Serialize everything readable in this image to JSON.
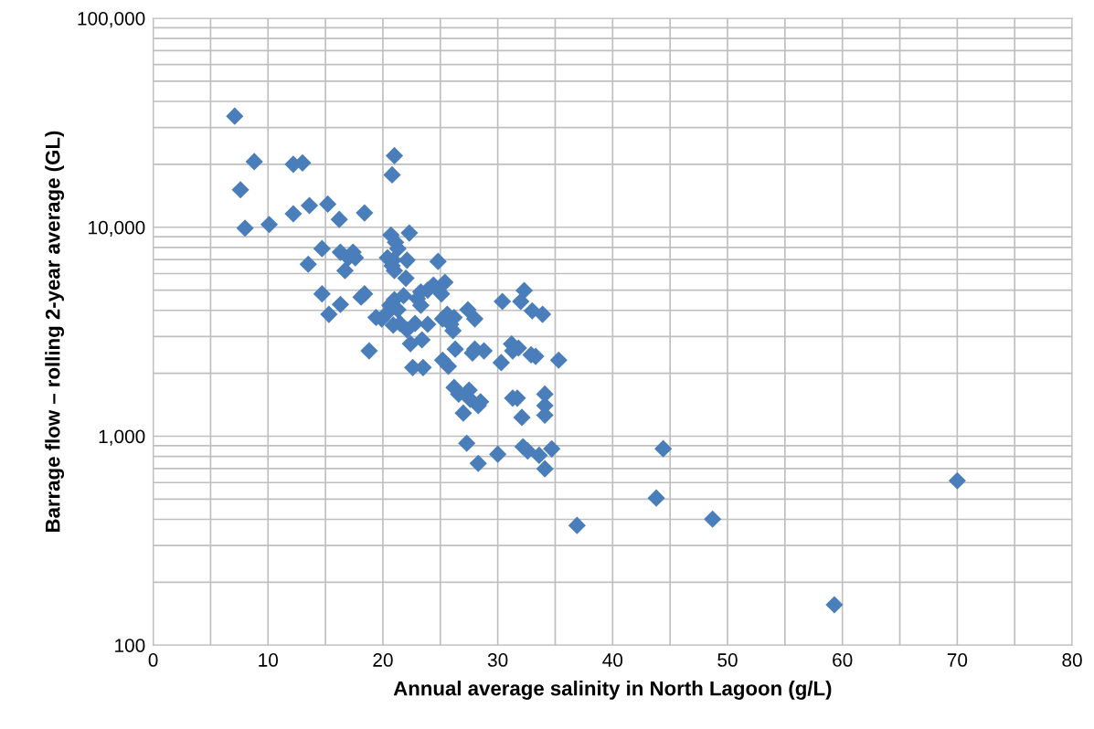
{
  "chart_data": {
    "type": "scatter",
    "xlabel": "Annual average salinity in North Lagoon (g/L)",
    "ylabel": "Barrage flow – rolling 2-year average (GL)",
    "log": "y",
    "grid": true,
    "marker": "diamond",
    "xlim": [
      0,
      80
    ],
    "xticks": [
      0,
      {
        "value": 5,
        "label": null
      },
      10,
      {
        "value": 15,
        "label": null
      },
      20,
      {
        "value": 25,
        "label": null
      },
      30,
      {
        "value": 35,
        "label": null
      },
      40,
      {
        "value": 45,
        "label": null
      },
      50,
      {
        "value": 55,
        "label": null
      },
      60,
      {
        "value": 65,
        "label": null
      },
      70,
      {
        "value": 75,
        "label": null
      },
      80
    ],
    "ylim": [
      100,
      100000
    ],
    "yticks": [
      {
        "value": 100,
        "label": "100"
      },
      {
        "value": 200,
        "label": null
      },
      {
        "value": 300,
        "label": null
      },
      {
        "value": 400,
        "label": null
      },
      {
        "value": 500,
        "label": null
      },
      {
        "value": 600,
        "label": null
      },
      {
        "value": 700,
        "label": null
      },
      {
        "value": 800,
        "label": null
      },
      {
        "value": 900,
        "label": null
      },
      {
        "value": 1000,
        "label": "1,000"
      },
      {
        "value": 2000,
        "label": null
      },
      {
        "value": 3000,
        "label": null
      },
      {
        "value": 4000,
        "label": null
      },
      {
        "value": 5000,
        "label": null
      },
      {
        "value": 6000,
        "label": null
      },
      {
        "value": 7000,
        "label": null
      },
      {
        "value": 8000,
        "label": null
      },
      {
        "value": 9000,
        "label": null
      },
      {
        "value": 10000,
        "label": "10,000"
      },
      {
        "value": 20000,
        "label": null
      },
      {
        "value": 30000,
        "label": null
      },
      {
        "value": 40000,
        "label": null
      },
      {
        "value": 50000,
        "label": null
      },
      {
        "value": 60000,
        "label": null
      },
      {
        "value": 70000,
        "label": null
      },
      {
        "value": 80000,
        "label": null
      },
      {
        "value": 90000,
        "label": null
      },
      {
        "value": 100000,
        "label": "100,000"
      }
    ],
    "series": [
      {
        "color": "#4a7ebb",
        "x": [
          7.1,
          7.6,
          8.0,
          8.8,
          10.1,
          12.2,
          13.0,
          12.2,
          13.6,
          13.5,
          14.7,
          14.7,
          15.2,
          15.3,
          16.2,
          16.3,
          16.3,
          16.7,
          17.0,
          17.4,
          17.6,
          18.1,
          18.4,
          18.4,
          18.8,
          19.4,
          19.9,
          20.4,
          20.7,
          21.1,
          21.3,
          20.9,
          20.4,
          20.8,
          21.0,
          21.0,
          20.8,
          20.6,
          21.0,
          21.3,
          21.5,
          20.9,
          22.3,
          22.1,
          22.0,
          21.8,
          22.1,
          22.4,
          22.8,
          23.0,
          23.3,
          23.3,
          22.6,
          23.5,
          23.4,
          23.9,
          23.9,
          24.4,
          25.1,
          24.8,
          25.4,
          25.2,
          25.6,
          25.2,
          25.7,
          25.9,
          26.2,
          26.1,
          26.3,
          26.2,
          26.6,
          27.0,
          27.3,
          27.5,
          27.6,
          28.0,
          27.8,
          27.4,
          28.0,
          28.3,
          28.5,
          28.3,
          28.8,
          30.0,
          30.3,
          30.4,
          31.2,
          31.3,
          31.3,
          31.7,
          31.8,
          32.0,
          32.1,
          32.2,
          32.3,
          32.6,
          32.9,
          33.0,
          33.3,
          33.6,
          33.9,
          34.1,
          34.1,
          34.1,
          34.1,
          34.7,
          35.3,
          36.9,
          43.8,
          44.4,
          48.7,
          59.3,
          70.0
        ],
        "values": [
          34000,
          15100,
          9900,
          20600,
          10300,
          20000,
          20300,
          11600,
          12700,
          6650,
          4800,
          7900,
          12900,
          3830,
          10900,
          4270,
          7590,
          6200,
          7140,
          7590,
          7140,
          4630,
          4800,
          11700,
          2560,
          3700,
          3640,
          3900,
          9180,
          8460,
          7900,
          6950,
          7140,
          6540,
          6200,
          22000,
          17800,
          4230,
          4500,
          4030,
          3460,
          3400,
          9380,
          6950,
          5700,
          4700,
          3230,
          2770,
          3460,
          4550,
          4230,
          4900,
          2130,
          2130,
          2890,
          3430,
          5000,
          5290,
          4800,
          6860,
          5450,
          3640,
          3830,
          2310,
          2160,
          3430,
          3700,
          3200,
          2610,
          1710,
          1590,
          1290,
          925,
          1660,
          1500,
          2610,
          2500,
          4030,
          3640,
          1400,
          1460,
          741,
          2560,
          820,
          2250,
          4410,
          2760,
          2560,
          1520,
          1520,
          2640,
          4410,
          1230,
          890,
          4980,
          850,
          2450,
          3980,
          2410,
          810,
          3830,
          1590,
          1400,
          1260,
          698,
          870,
          2310,
          374,
          506,
          871,
          401,
          156,
          612
        ]
      }
    ]
  }
}
